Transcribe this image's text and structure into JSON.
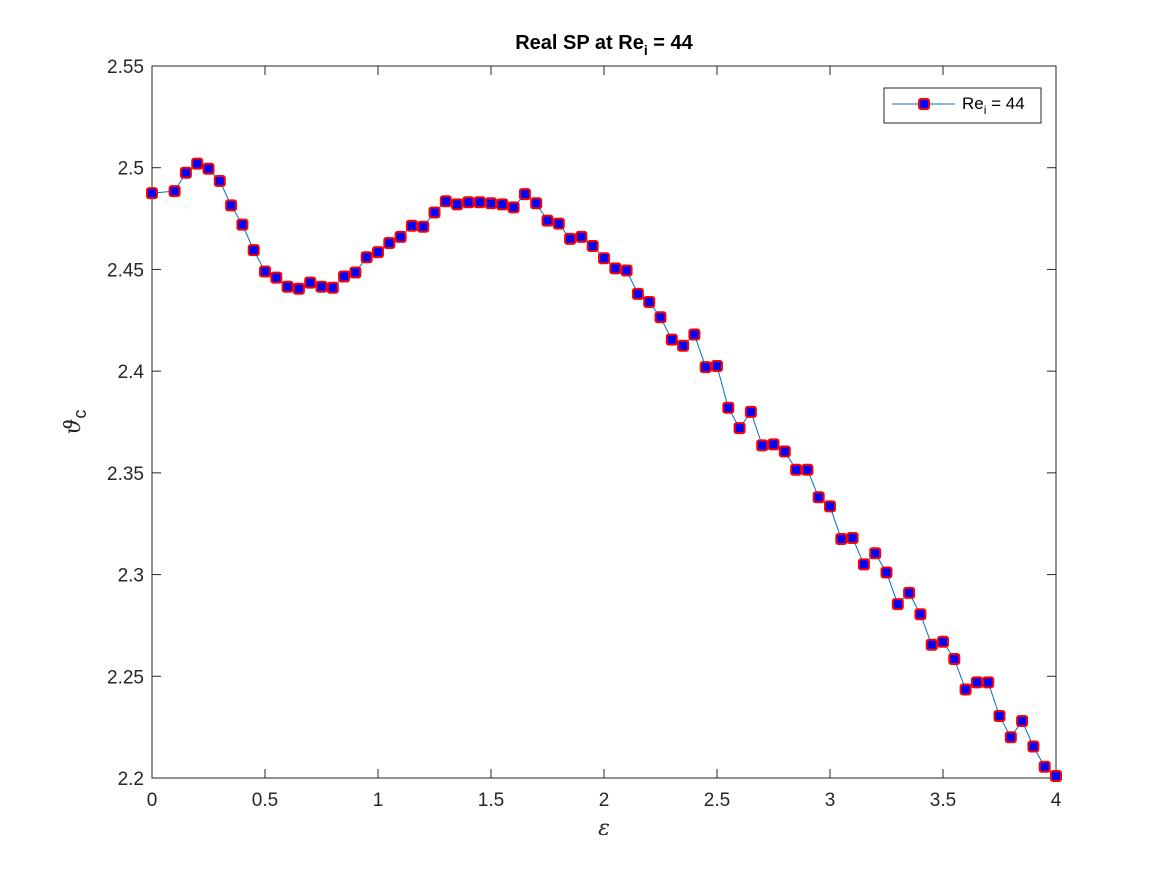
{
  "chart_data": {
    "type": "line",
    "title": "Real SP at Re",
    "title_subscript": "i",
    "title_suffix": " = 44",
    "xlabel": "ε",
    "ylabel": "ϑ",
    "ylabel_subscript": "c",
    "xlim": [
      0,
      4
    ],
    "ylim": [
      2.2,
      2.55
    ],
    "xticks": [
      0,
      0.5,
      1,
      1.5,
      2,
      2.5,
      3,
      3.5,
      4
    ],
    "xtick_labels": [
      "0",
      "0.5",
      "1",
      "1.5",
      "2",
      "2.5",
      "3",
      "3.5",
      "4"
    ],
    "yticks": [
      2.2,
      2.25,
      2.3,
      2.35,
      2.4,
      2.45,
      2.5,
      2.55
    ],
    "ytick_labels": [
      "2.2",
      "2.25",
      "2.3",
      "2.35",
      "2.4",
      "2.45",
      "2.5",
      "2.55"
    ],
    "grid": false,
    "legend_position": "top-right",
    "colors": {
      "line": "#0072BD",
      "marker_face": "#0000FF",
      "marker_edge": "#FF0000",
      "axes": "#262626"
    },
    "series": [
      {
        "legend_base": "Re",
        "legend_subscript": "i",
        "legend_suffix": " = 44",
        "x": [
          0,
          0.1,
          0.15,
          0.2,
          0.25,
          0.3,
          0.35,
          0.4,
          0.45,
          0.5,
          0.55,
          0.6,
          0.65,
          0.7,
          0.75,
          0.8,
          0.85,
          0.9,
          0.95,
          1,
          1.05,
          1.1,
          1.15,
          1.2,
          1.25,
          1.3,
          1.35,
          1.4,
          1.45,
          1.5,
          1.55,
          1.6,
          1.65,
          1.7,
          1.75,
          1.8,
          1.85,
          1.9,
          1.95,
          2,
          2.05,
          2.1,
          2.15,
          2.2,
          2.25,
          2.3,
          2.35,
          2.4,
          2.45,
          2.5,
          2.55,
          2.6,
          2.65,
          2.7,
          2.75,
          2.8,
          2.85,
          2.9,
          2.95,
          3,
          3.05,
          3.1,
          3.15,
          3.2,
          3.25,
          3.3,
          3.35,
          3.4,
          3.45,
          3.5,
          3.55,
          3.6,
          3.65,
          3.7,
          3.75,
          3.8,
          3.85,
          3.9,
          3.95,
          4
        ],
        "y": [
          2.4875,
          2.4885,
          2.4975,
          2.502,
          2.4995,
          2.4935,
          2.4815,
          2.472,
          2.4595,
          2.449,
          2.446,
          2.4415,
          2.4405,
          2.4435,
          2.4415,
          2.441,
          2.4465,
          2.4485,
          2.456,
          2.4585,
          2.463,
          2.466,
          2.4715,
          2.471,
          2.478,
          2.4835,
          2.482,
          2.483,
          2.483,
          2.4825,
          2.482,
          2.4805,
          2.487,
          2.4825,
          2.474,
          2.4725,
          2.465,
          2.466,
          2.4615,
          2.4555,
          2.4505,
          2.4495,
          2.438,
          2.434,
          2.4265,
          2.4155,
          2.4125,
          2.418,
          2.402,
          2.4025,
          2.382,
          2.372,
          2.38,
          2.3635,
          2.364,
          2.3605,
          2.3515,
          2.3515,
          2.338,
          2.3335,
          2.3175,
          2.318,
          2.305,
          2.3105,
          2.301,
          2.2855,
          2.291,
          2.2805,
          2.2655,
          2.267,
          2.2585,
          2.2435,
          2.247,
          2.247,
          2.2305,
          2.22,
          2.228,
          2.2155,
          2.2055,
          2.201
        ]
      }
    ]
  }
}
